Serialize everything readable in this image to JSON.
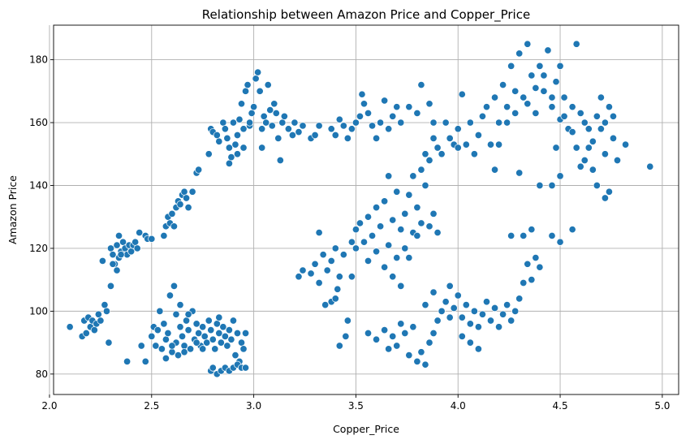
{
  "chart_data": {
    "type": "scatter",
    "title": "Relationship between Amazon Price and Copper_Price",
    "xlabel": "Copper_Price",
    "ylabel": "Amazon Price",
    "xlim": [
      2.02,
      5.08
    ],
    "ylim": [
      73.5,
      191
    ],
    "xticks": [
      2.0,
      2.5,
      3.0,
      3.5,
      4.0,
      4.5,
      5.0
    ],
    "yticks": [
      80,
      100,
      120,
      140,
      160,
      180
    ],
    "grid": true,
    "color": "#1f77b4",
    "points": [
      [
        2.1,
        95
      ],
      [
        2.16,
        92
      ],
      [
        2.17,
        97
      ],
      [
        2.18,
        93
      ],
      [
        2.19,
        98
      ],
      [
        2.2,
        95
      ],
      [
        2.21,
        97
      ],
      [
        2.22,
        94
      ],
      [
        2.23,
        96
      ],
      [
        2.24,
        99
      ],
      [
        2.25,
        97
      ],
      [
        2.27,
        102
      ],
      [
        2.28,
        100
      ],
      [
        2.26,
        116
      ],
      [
        2.3,
        108
      ],
      [
        2.29,
        90
      ],
      [
        2.38,
        84
      ],
      [
        2.47,
        84
      ],
      [
        2.45,
        89
      ],
      [
        2.3,
        120
      ],
      [
        2.31,
        118
      ],
      [
        2.32,
        115
      ],
      [
        2.33,
        121
      ],
      [
        2.34,
        117
      ],
      [
        2.35,
        119
      ],
      [
        2.36,
        122
      ],
      [
        2.37,
        120
      ],
      [
        2.38,
        118
      ],
      [
        2.39,
        121
      ],
      [
        2.4,
        119
      ],
      [
        2.41,
        121
      ],
      [
        2.42,
        122
      ],
      [
        2.43,
        120
      ],
      [
        2.44,
        125
      ],
      [
        2.47,
        124
      ],
      [
        2.48,
        123
      ],
      [
        2.5,
        123
      ],
      [
        2.31,
        115
      ],
      [
        2.33,
        113
      ],
      [
        2.35,
        118
      ],
      [
        2.34,
        124
      ],
      [
        2.56,
        124
      ],
      [
        2.57,
        127
      ],
      [
        2.58,
        130
      ],
      [
        2.59,
        128
      ],
      [
        2.6,
        131
      ],
      [
        2.61,
        127
      ],
      [
        2.62,
        133
      ],
      [
        2.63,
        135
      ],
      [
        2.64,
        134
      ],
      [
        2.65,
        137
      ],
      [
        2.66,
        138
      ],
      [
        2.67,
        136
      ],
      [
        2.68,
        133
      ],
      [
        2.7,
        138
      ],
      [
        2.72,
        144
      ],
      [
        2.73,
        145
      ],
      [
        2.78,
        150
      ],
      [
        2.79,
        158
      ],
      [
        2.8,
        157
      ],
      [
        2.82,
        156
      ],
      [
        2.83,
        154
      ],
      [
        2.85,
        160
      ],
      [
        2.86,
        158
      ],
      [
        2.87,
        155
      ],
      [
        2.88,
        152
      ],
      [
        2.89,
        149
      ],
      [
        2.9,
        160
      ],
      [
        2.91,
        153
      ],
      [
        2.92,
        156
      ],
      [
        2.93,
        161
      ],
      [
        2.94,
        166
      ],
      [
        2.95,
        158
      ],
      [
        2.96,
        170
      ],
      [
        2.97,
        172
      ],
      [
        2.98,
        159
      ],
      [
        2.99,
        163
      ],
      [
        3.0,
        165
      ],
      [
        3.01,
        174
      ],
      [
        3.02,
        176
      ],
      [
        3.03,
        170
      ],
      [
        3.04,
        158
      ],
      [
        3.05,
        162
      ],
      [
        3.06,
        160
      ],
      [
        3.07,
        172
      ],
      [
        3.08,
        164
      ],
      [
        3.09,
        159
      ],
      [
        3.1,
        166
      ],
      [
        3.11,
        163
      ],
      [
        3.12,
        155
      ],
      [
        3.13,
        148
      ],
      [
        3.14,
        160
      ],
      [
        3.15,
        162
      ],
      [
        3.17,
        158
      ],
      [
        3.19,
        156
      ],
      [
        3.2,
        160
      ],
      [
        3.22,
        157
      ],
      [
        3.24,
        159
      ],
      [
        3.28,
        155
      ],
      [
        3.3,
        156
      ],
      [
        3.32,
        159
      ],
      [
        2.88,
        147
      ],
      [
        2.92,
        150
      ],
      [
        2.95,
        152
      ],
      [
        2.98,
        160
      ],
      [
        3.04,
        152
      ],
      [
        2.5,
        92
      ],
      [
        2.51,
        95
      ],
      [
        2.52,
        89
      ],
      [
        2.53,
        94
      ],
      [
        2.54,
        100
      ],
      [
        2.55,
        88
      ],
      [
        2.56,
        96
      ],
      [
        2.57,
        91
      ],
      [
        2.58,
        93
      ],
      [
        2.59,
        105
      ],
      [
        2.6,
        87
      ],
      [
        2.61,
        108
      ],
      [
        2.62,
        90
      ],
      [
        2.63,
        86
      ],
      [
        2.64,
        95
      ],
      [
        2.65,
        92
      ],
      [
        2.66,
        89
      ],
      [
        2.67,
        97
      ],
      [
        2.68,
        94
      ],
      [
        2.69,
        88
      ],
      [
        2.7,
        100
      ],
      [
        2.71,
        91
      ],
      [
        2.72,
        96
      ],
      [
        2.73,
        93
      ],
      [
        2.74,
        89
      ],
      [
        2.75,
        95
      ],
      [
        2.76,
        92
      ],
      [
        2.77,
        90
      ],
      [
        2.78,
        97
      ],
      [
        2.79,
        94
      ],
      [
        2.8,
        91
      ],
      [
        2.81,
        88
      ],
      [
        2.82,
        96
      ],
      [
        2.83,
        93
      ],
      [
        2.84,
        90
      ],
      [
        2.85,
        95
      ],
      [
        2.86,
        92
      ],
      [
        2.87,
        89
      ],
      [
        2.88,
        94
      ],
      [
        2.89,
        91
      ],
      [
        2.9,
        97
      ],
      [
        2.91,
        86
      ],
      [
        2.92,
        93
      ],
      [
        2.93,
        84
      ],
      [
        2.94,
        90
      ],
      [
        2.95,
        88
      ],
      [
        2.96,
        93
      ],
      [
        2.57,
        85
      ],
      [
        2.6,
        89
      ],
      [
        2.62,
        99
      ],
      [
        2.64,
        102
      ],
      [
        2.66,
        87
      ],
      [
        2.68,
        99
      ],
      [
        2.72,
        90
      ],
      [
        2.75,
        88
      ],
      [
        2.83,
        98
      ],
      [
        2.79,
        81
      ],
      [
        2.8,
        82
      ],
      [
        2.82,
        80
      ],
      [
        2.84,
        81
      ],
      [
        2.86,
        82
      ],
      [
        2.88,
        81
      ],
      [
        2.9,
        82
      ],
      [
        2.92,
        83
      ],
      [
        2.94,
        82
      ],
      [
        2.96,
        82
      ],
      [
        3.22,
        111
      ],
      [
        3.24,
        113
      ],
      [
        3.28,
        112
      ],
      [
        3.3,
        115
      ],
      [
        3.32,
        109
      ],
      [
        3.34,
        118
      ],
      [
        3.35,
        102
      ],
      [
        3.36,
        113
      ],
      [
        3.38,
        116
      ],
      [
        3.4,
        120
      ],
      [
        3.41,
        107
      ],
      [
        3.42,
        111
      ],
      [
        3.44,
        118
      ],
      [
        3.45,
        92
      ],
      [
        3.46,
        97
      ],
      [
        3.48,
        122
      ],
      [
        3.5,
        120
      ],
      [
        3.42,
        89
      ],
      [
        3.38,
        103
      ],
      [
        3.32,
        125
      ],
      [
        3.4,
        104
      ],
      [
        3.38,
        158
      ],
      [
        3.4,
        156
      ],
      [
        3.42,
        161
      ],
      [
        3.44,
        159
      ],
      [
        3.46,
        155
      ],
      [
        3.48,
        158
      ],
      [
        3.5,
        160
      ],
      [
        3.52,
        162
      ],
      [
        3.53,
        169
      ],
      [
        3.54,
        166
      ],
      [
        3.56,
        163
      ],
      [
        3.58,
        159
      ],
      [
        3.6,
        155
      ],
      [
        3.62,
        160
      ],
      [
        3.64,
        167
      ],
      [
        3.66,
        158
      ],
      [
        3.68,
        162
      ],
      [
        3.7,
        165
      ],
      [
        3.72,
        160
      ],
      [
        3.76,
        165
      ],
      [
        3.8,
        163
      ],
      [
        3.82,
        172
      ],
      [
        3.86,
        166
      ],
      [
        3.88,
        160
      ],
      [
        3.5,
        126
      ],
      [
        3.52,
        128
      ],
      [
        3.54,
        122
      ],
      [
        3.56,
        130
      ],
      [
        3.58,
        124
      ],
      [
        3.6,
        133
      ],
      [
        3.62,
        127
      ],
      [
        3.64,
        135
      ],
      [
        3.66,
        121
      ],
      [
        3.68,
        129
      ],
      [
        3.7,
        138
      ],
      [
        3.72,
        126
      ],
      [
        3.74,
        131
      ],
      [
        3.76,
        137
      ],
      [
        3.78,
        125
      ],
      [
        3.8,
        133
      ],
      [
        3.82,
        128
      ],
      [
        3.84,
        140
      ],
      [
        3.86,
        127
      ],
      [
        3.88,
        131
      ],
      [
        3.9,
        125
      ],
      [
        3.66,
        143
      ],
      [
        3.7,
        117
      ],
      [
        3.74,
        120
      ],
      [
        3.78,
        143
      ],
      [
        3.82,
        145
      ],
      [
        3.84,
        150
      ],
      [
        3.86,
        148
      ],
      [
        3.88,
        155
      ],
      [
        3.9,
        152
      ],
      [
        3.92,
        150
      ],
      [
        3.94,
        160
      ],
      [
        3.96,
        155
      ],
      [
        3.98,
        153
      ],
      [
        4.0,
        152
      ],
      [
        3.56,
        116
      ],
      [
        3.6,
        119
      ],
      [
        3.64,
        114
      ],
      [
        3.68,
        111
      ],
      [
        3.72,
        108
      ],
      [
        3.76,
        117
      ],
      [
        3.8,
        124
      ],
      [
        3.48,
        111
      ],
      [
        3.56,
        93
      ],
      [
        3.6,
        91
      ],
      [
        3.64,
        94
      ],
      [
        3.66,
        88
      ],
      [
        3.68,
        92
      ],
      [
        3.7,
        89
      ],
      [
        3.72,
        96
      ],
      [
        3.74,
        93
      ],
      [
        3.76,
        86
      ],
      [
        3.78,
        95
      ],
      [
        3.8,
        84
      ],
      [
        3.82,
        87
      ],
      [
        3.84,
        83
      ],
      [
        3.86,
        90
      ],
      [
        3.88,
        93
      ],
      [
        3.9,
        97
      ],
      [
        3.92,
        100
      ],
      [
        3.94,
        103
      ],
      [
        3.96,
        98
      ],
      [
        3.98,
        101
      ],
      [
        4.0,
        105
      ],
      [
        4.02,
        98
      ],
      [
        4.04,
        102
      ],
      [
        4.06,
        96
      ],
      [
        4.08,
        100
      ],
      [
        4.1,
        95
      ],
      [
        4.12,
        99
      ],
      [
        4.14,
        103
      ],
      [
        4.16,
        97
      ],
      [
        4.18,
        101
      ],
      [
        4.2,
        95
      ],
      [
        4.22,
        99
      ],
      [
        4.24,
        102
      ],
      [
        4.26,
        97
      ],
      [
        4.28,
        100
      ],
      [
        4.3,
        104
      ],
      [
        4.32,
        109
      ],
      [
        4.34,
        115
      ],
      [
        4.36,
        110
      ],
      [
        4.38,
        117
      ],
      [
        4.4,
        114
      ],
      [
        4.02,
        92
      ],
      [
        4.06,
        90
      ],
      [
        4.1,
        88
      ],
      [
        3.84,
        102
      ],
      [
        3.88,
        106
      ],
      [
        3.96,
        108
      ],
      [
        4.0,
        158
      ],
      [
        4.02,
        169
      ],
      [
        4.04,
        153
      ],
      [
        4.06,
        160
      ],
      [
        4.08,
        150
      ],
      [
        4.1,
        156
      ],
      [
        4.12,
        162
      ],
      [
        4.14,
        165
      ],
      [
        4.16,
        153
      ],
      [
        4.18,
        168
      ],
      [
        4.2,
        160
      ],
      [
        4.22,
        172
      ],
      [
        4.24,
        165
      ],
      [
        4.26,
        178
      ],
      [
        4.28,
        170
      ],
      [
        4.3,
        182
      ],
      [
        4.32,
        168
      ],
      [
        4.34,
        185
      ],
      [
        4.36,
        175
      ],
      [
        4.38,
        163
      ],
      [
        4.4,
        178
      ],
      [
        4.42,
        170
      ],
      [
        4.44,
        183
      ],
      [
        4.46,
        165
      ],
      [
        4.48,
        173
      ],
      [
        4.5,
        161
      ],
      [
        4.52,
        168
      ],
      [
        4.54,
        158
      ],
      [
        4.56,
        165
      ],
      [
        4.58,
        152
      ],
      [
        4.6,
        163
      ],
      [
        4.62,
        148
      ],
      [
        4.64,
        158
      ],
      [
        4.66,
        145
      ],
      [
        4.68,
        162
      ],
      [
        4.7,
        158
      ],
      [
        4.72,
        150
      ],
      [
        4.74,
        165
      ],
      [
        4.76,
        155
      ],
      [
        4.78,
        148
      ],
      [
        4.82,
        153
      ],
      [
        4.94,
        146
      ],
      [
        4.58,
        185
      ],
      [
        4.5,
        178
      ],
      [
        4.7,
        168
      ],
      [
        4.74,
        138
      ],
      [
        4.72,
        136
      ],
      [
        4.56,
        126
      ],
      [
        4.5,
        122
      ],
      [
        4.46,
        124
      ],
      [
        4.36,
        126
      ],
      [
        4.4,
        140
      ],
      [
        4.46,
        140
      ],
      [
        4.3,
        144
      ],
      [
        4.26,
        124
      ],
      [
        4.32,
        124
      ],
      [
        4.5,
        143
      ],
      [
        4.48,
        152
      ],
      [
        4.6,
        146
      ],
      [
        4.64,
        152
      ],
      [
        4.68,
        140
      ],
      [
        4.18,
        145
      ],
      [
        4.2,
        153
      ],
      [
        4.24,
        160
      ],
      [
        4.28,
        163
      ],
      [
        4.34,
        166
      ],
      [
        4.38,
        171
      ],
      [
        4.42,
        175
      ],
      [
        4.46,
        168
      ],
      [
        4.52,
        162
      ],
      [
        4.56,
        157
      ],
      [
        4.62,
        160
      ],
      [
        4.66,
        154
      ],
      [
        4.72,
        160
      ],
      [
        4.76,
        162
      ]
    ]
  }
}
